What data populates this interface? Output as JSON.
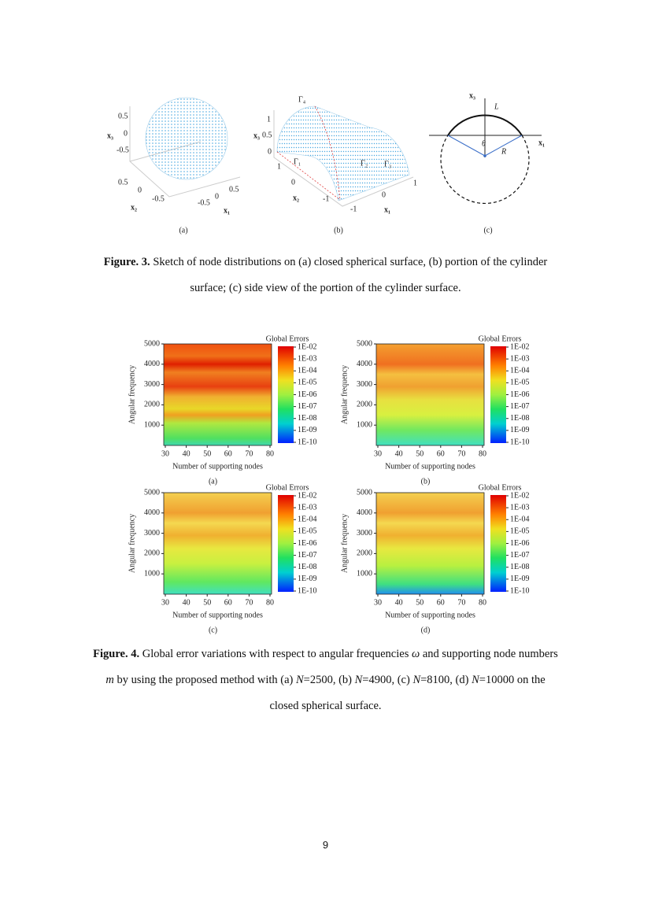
{
  "figure3": {
    "panel_a": {
      "x3_label": "x₃",
      "x3_ticks": [
        "0.5",
        "0",
        "-0.5"
      ],
      "x2_label": "x₂",
      "x2_ticks": [
        "0.5",
        "0",
        "-0.5"
      ],
      "x1_label": "x₁",
      "x1_ticks": [
        "0.5",
        "0",
        "-0.5"
      ],
      "label": "(a)"
    },
    "panel_b": {
      "x3_label": "x₃",
      "x3_ticks": [
        "1",
        "0.5",
        "0"
      ],
      "x2_label": "x₂",
      "x2_ticks": [
        "1",
        "0",
        "-1"
      ],
      "x1_label": "x₁",
      "x1_ticks": [
        "1",
        "0",
        "-1"
      ],
      "boundaries": [
        "Γ₄",
        "Γ₁",
        "Γ₂",
        "Γ₃"
      ],
      "label": "(b)"
    },
    "panel_c": {
      "x3_label": "x₃",
      "x1_label": "x₁",
      "arc_label": "L",
      "angle_label": "θ",
      "radius_label": "R",
      "label": "(c)"
    },
    "caption": {
      "label": "Figure. 3.",
      "text": "Sketch of node distributions on (a) closed spherical surface, (b) portion of the cylinder surface; (c) side view of the portion of the cylinder surface."
    }
  },
  "figure4": {
    "panels": [
      {
        "y_title": "Angular frequency",
        "yticks": [
          "1000",
          "2000",
          "3000",
          "4000",
          "5000"
        ],
        "x_title": "Number of supporting nodes",
        "xticks": [
          "30",
          "40",
          "50",
          "60",
          "70",
          "80"
        ],
        "colorbar_title": "Global Errors",
        "colorbar_labels": [
          "1E-02",
          "1E-03",
          "1E-04",
          "1E-05",
          "1E-06",
          "1E-07",
          "1E-08",
          "1E-09",
          "1E-10"
        ],
        "label": "(a)"
      },
      {
        "y_title": "Angular frequency",
        "yticks": [
          "1000",
          "2000",
          "3000",
          "4000",
          "5000"
        ],
        "x_title": "Number of supporting nodes",
        "xticks": [
          "30",
          "40",
          "50",
          "60",
          "70",
          "80"
        ],
        "colorbar_title": "Global Errors",
        "colorbar_labels": [
          "1E-02",
          "1E-03",
          "1E-04",
          "1E-05",
          "1E-06",
          "1E-07",
          "1E-08",
          "1E-09",
          "1E-10"
        ],
        "label": "(b)"
      },
      {
        "y_title": "Angular frequency",
        "yticks": [
          "1000",
          "2000",
          "3000",
          "4000",
          "5000"
        ],
        "x_title": "Number of supporting nodes",
        "xticks": [
          "30",
          "40",
          "50",
          "60",
          "70",
          "80"
        ],
        "colorbar_title": "Global Errors",
        "colorbar_labels": [
          "1E-02",
          "1E-03",
          "1E-04",
          "1E-05",
          "1E-06",
          "1E-07",
          "1E-08",
          "1E-09",
          "1E-10"
        ],
        "label": "(c)"
      },
      {
        "y_title": "Angular frequency",
        "yticks": [
          "1000",
          "2000",
          "3000",
          "4000",
          "5000"
        ],
        "x_title": "Number of supporting nodes",
        "xticks": [
          "30",
          "40",
          "50",
          "60",
          "70",
          "80"
        ],
        "colorbar_title": "Global Errors",
        "colorbar_labels": [
          "1E-02",
          "1E-03",
          "1E-04",
          "1E-05",
          "1E-06",
          "1E-07",
          "1E-08",
          "1E-09",
          "1E-10"
        ],
        "label": "(d)"
      }
    ],
    "caption": {
      "label": "Figure. 4.",
      "parts": [
        "Global error variations with respect to angular frequencies",
        "ω",
        "and supporting node numbers",
        "m",
        "by using the proposed method with (a)",
        "N",
        "=2500, (b)",
        "N",
        "=4900, (c)",
        "N",
        "=8100, (d)",
        "N",
        "=10000 on the closed spherical surface."
      ]
    }
  },
  "page_number": "9"
}
